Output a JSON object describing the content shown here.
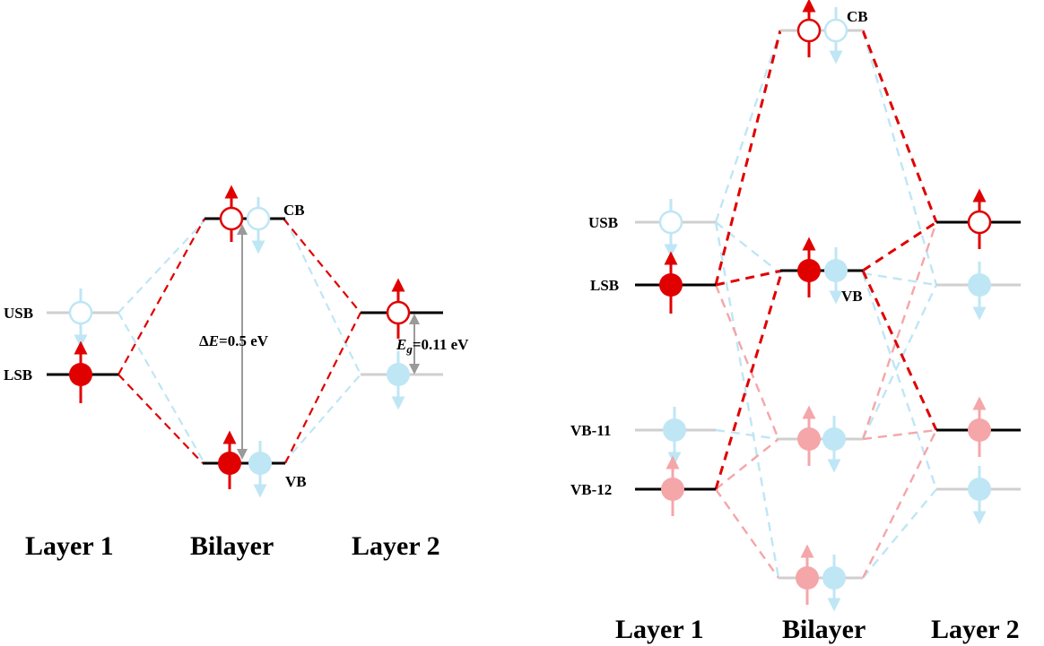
{
  "colors": {
    "red": "#e00000",
    "pink": "#f4a6a9",
    "lightblue": "#bfe6f5",
    "grey": "#cfcfcf",
    "black": "#000000",
    "arrow_grey": "#9a9a9a"
  },
  "panel_left": {
    "level_labels": {
      "cb": "CB",
      "vb": "VB",
      "usb": "USB",
      "lsb": "LSB"
    },
    "delta_e": {
      "symbol": "Δ",
      "var": "E",
      "value": "=0.5 eV"
    },
    "gap": {
      "var": "E",
      "sub": "g",
      "value": "=0.11 eV"
    },
    "columns": [
      "Layer 1",
      "Bilayer",
      "Layer 2"
    ]
  },
  "panel_right": {
    "level_labels": {
      "cb": "CB",
      "vb": "VB",
      "usb": "USB",
      "lsb": "LSB",
      "vb11": "VB-11",
      "vb12": "VB-12"
    },
    "columns": [
      "Layer 1",
      "Bilayer",
      "Layer 2"
    ]
  },
  "icons": {
    "spin_up": "spin-up-arrow-icon",
    "spin_down": "spin-down-arrow-icon",
    "electron": "filled-circle-icon",
    "hole": "open-circle-icon"
  }
}
